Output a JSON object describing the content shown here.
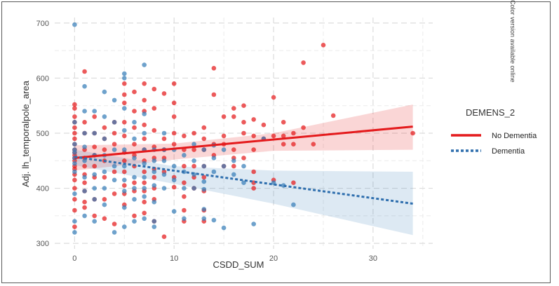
{
  "side_note": "Color version available online",
  "chart_data": {
    "type": "scatter",
    "xlabel": "CSDD_SUM",
    "ylabel": "Adj. lh_temporalpole_area",
    "xlim": [
      -2,
      36
    ],
    "ylim": [
      290,
      710
    ],
    "xticks": [
      0,
      10,
      20,
      30
    ],
    "yticks": [
      300,
      400,
      500,
      600,
      700
    ],
    "grid": true,
    "legend": {
      "title": "DEMENS_2",
      "placement": "right",
      "entries": [
        {
          "label": "No Dementia",
          "color": "#e41a1c",
          "line": "solid"
        },
        {
          "label": "Dementia",
          "color": "#377eb8",
          "line": "dashed"
        }
      ]
    },
    "series": [
      {
        "name": "No Dementia",
        "color": "#e41a1c",
        "fit": {
          "x": [
            0,
            34
          ],
          "y": [
            455,
            512
          ]
        },
        "band": {
          "x": [
            0,
            10,
            20,
            34
          ],
          "lower": [
            432,
            452,
            468,
            470
          ],
          "upper": [
            478,
            481,
            500,
            552
          ]
        },
        "points": [
          [
            0,
            330
          ],
          [
            0,
            360
          ],
          [
            0,
            380
          ],
          [
            0,
            400
          ],
          [
            0,
            415
          ],
          [
            0,
            425
          ],
          [
            0,
            435
          ],
          [
            0,
            440
          ],
          [
            0,
            450
          ],
          [
            0,
            455
          ],
          [
            0,
            460
          ],
          [
            0,
            465
          ],
          [
            0,
            470
          ],
          [
            0,
            480
          ],
          [
            0,
            490
          ],
          [
            0,
            500
          ],
          [
            0,
            510
          ],
          [
            0,
            520
          ],
          [
            0,
            530
          ],
          [
            0,
            545
          ],
          [
            0,
            552
          ],
          [
            1,
            612
          ],
          [
            1,
            470
          ],
          [
            1,
            455
          ],
          [
            1,
            440
          ],
          [
            1,
            425
          ],
          [
            1,
            410
          ],
          [
            1,
            395
          ],
          [
            1,
            375
          ],
          [
            1,
            365
          ],
          [
            1,
            500
          ],
          [
            1,
            520
          ],
          [
            2,
            350
          ],
          [
            2,
            380
          ],
          [
            2,
            420
          ],
          [
            2,
            440
          ],
          [
            2,
            460
          ],
          [
            2,
            475
          ],
          [
            2,
            500
          ],
          [
            2,
            530
          ],
          [
            3,
            345
          ],
          [
            3,
            380
          ],
          [
            3,
            420
          ],
          [
            3,
            450
          ],
          [
            3,
            470
          ],
          [
            3,
            490
          ],
          [
            3,
            510
          ],
          [
            4,
            335
          ],
          [
            4,
            390
          ],
          [
            4,
            430
          ],
          [
            4,
            480
          ],
          [
            4,
            500
          ],
          [
            4,
            520
          ],
          [
            5,
            590
          ],
          [
            5,
            570
          ],
          [
            5,
            555
          ],
          [
            5,
            520
          ],
          [
            5,
            495
          ],
          [
            5,
            465
          ],
          [
            5,
            450
          ],
          [
            5,
            430
          ],
          [
            5,
            405
          ],
          [
            5,
            390
          ],
          [
            5,
            370
          ],
          [
            6,
            575
          ],
          [
            6,
            540
          ],
          [
            6,
            510
          ],
          [
            6,
            480
          ],
          [
            6,
            460
          ],
          [
            6,
            440
          ],
          [
            6,
            410
          ],
          [
            6,
            395
          ],
          [
            6,
            350
          ],
          [
            7,
            590
          ],
          [
            7,
            560
          ],
          [
            7,
            540
          ],
          [
            7,
            515
          ],
          [
            7,
            490
          ],
          [
            7,
            470
          ],
          [
            7,
            450
          ],
          [
            7,
            430
          ],
          [
            7,
            410
          ],
          [
            7,
            395
          ],
          [
            7,
            375
          ],
          [
            7,
            355
          ],
          [
            8,
            580
          ],
          [
            8,
            545
          ],
          [
            8,
            505
          ],
          [
            8,
            475
          ],
          [
            8,
            455
          ],
          [
            8,
            435
          ],
          [
            8,
            420
          ],
          [
            8,
            400
          ],
          [
            8,
            380
          ],
          [
            8,
            340
          ],
          [
            9,
            572
          ],
          [
            9,
            490
          ],
          [
            9,
            470
          ],
          [
            9,
            455
          ],
          [
            9,
            430
          ],
          [
            9,
            312
          ],
          [
            10,
            590
          ],
          [
            10,
            555
          ],
          [
            10,
            530
          ],
          [
            10,
            500
          ],
          [
            10,
            480
          ],
          [
            10,
            420
          ],
          [
            10,
            402
          ],
          [
            11,
            495
          ],
          [
            11,
            470
          ],
          [
            11,
            440
          ],
          [
            11,
            410
          ],
          [
            11,
            385
          ],
          [
            11,
            360
          ],
          [
            11,
            340
          ],
          [
            12,
            500
          ],
          [
            12,
            470
          ],
          [
            12,
            440
          ],
          [
            12,
            420
          ],
          [
            12,
            400
          ],
          [
            13,
            510
          ],
          [
            13,
            490
          ],
          [
            13,
            470
          ],
          [
            13,
            440
          ],
          [
            13,
            420
          ],
          [
            13,
            395
          ],
          [
            13,
            360
          ],
          [
            13,
            340
          ],
          [
            14,
            570
          ],
          [
            14,
            618
          ],
          [
            14,
            480
          ],
          [
            14,
            460
          ],
          [
            15,
            530
          ],
          [
            15,
            495
          ],
          [
            15,
            480
          ],
          [
            15,
            440
          ],
          [
            16,
            545
          ],
          [
            16,
            530
          ],
          [
            16,
            470
          ],
          [
            16,
            455
          ],
          [
            16,
            440
          ],
          [
            17,
            550
          ],
          [
            17,
            520
          ],
          [
            17,
            500
          ],
          [
            17,
            455
          ],
          [
            18,
            525
          ],
          [
            18,
            495
          ],
          [
            18,
            470
          ],
          [
            18,
            430
          ],
          [
            18,
            410
          ],
          [
            18,
            400
          ],
          [
            19,
            515
          ],
          [
            19,
            490
          ],
          [
            20,
            565
          ],
          [
            20,
            495
          ],
          [
            20,
            415
          ],
          [
            21,
            520
          ],
          [
            21,
            495
          ],
          [
            21,
            480
          ],
          [
            22,
            500
          ],
          [
            22,
            480
          ],
          [
            22,
            410
          ],
          [
            23,
            628
          ],
          [
            23,
            510
          ],
          [
            24,
            480
          ],
          [
            25,
            660
          ],
          [
            26,
            532
          ],
          [
            34,
            500
          ]
        ]
      },
      {
        "name": "Dementia",
        "color": "#377eb8",
        "fit": {
          "x": [
            0,
            34
          ],
          "y": [
            457,
            372
          ]
        },
        "band": {
          "x": [
            0,
            10,
            20,
            34
          ],
          "lower": [
            442,
            408,
            372,
            315
          ],
          "upper": [
            470,
            440,
            432,
            430
          ]
        },
        "points": [
          [
            0,
            697
          ],
          [
            0,
            320
          ],
          [
            0,
            340
          ],
          [
            0,
            390
          ],
          [
            0,
            430
          ],
          [
            0,
            445
          ],
          [
            0,
            455
          ],
          [
            0,
            465
          ],
          [
            0,
            470
          ],
          [
            0,
            480
          ],
          [
            0,
            520
          ],
          [
            1,
            585
          ],
          [
            1,
            540
          ],
          [
            1,
            500
          ],
          [
            1,
            475
          ],
          [
            1,
            450
          ],
          [
            1,
            420
          ],
          [
            1,
            395
          ],
          [
            1,
            350
          ],
          [
            2,
            540
          ],
          [
            2,
            500
          ],
          [
            2,
            460
          ],
          [
            2,
            425
          ],
          [
            2,
            400
          ],
          [
            2,
            380
          ],
          [
            2,
            340
          ],
          [
            3,
            575
          ],
          [
            3,
            530
          ],
          [
            3,
            490
          ],
          [
            3,
            460
          ],
          [
            3,
            430
          ],
          [
            3,
            400
          ],
          [
            3,
            370
          ],
          [
            4,
            560
          ],
          [
            4,
            520
          ],
          [
            4,
            470
          ],
          [
            4,
            440
          ],
          [
            4,
            415
          ],
          [
            4,
            320
          ],
          [
            5,
            608
          ],
          [
            5,
            600
          ],
          [
            5,
            545
          ],
          [
            5,
            505
          ],
          [
            5,
            470
          ],
          [
            5,
            440
          ],
          [
            5,
            415
          ],
          [
            5,
            395
          ],
          [
            5,
            365
          ],
          [
            5,
            330
          ],
          [
            6,
            520
          ],
          [
            6,
            490
          ],
          [
            6,
            455
          ],
          [
            6,
            420
          ],
          [
            6,
            400
          ],
          [
            6,
            380
          ],
          [
            6,
            340
          ],
          [
            7,
            624
          ],
          [
            7,
            535
          ],
          [
            7,
            500
          ],
          [
            7,
            470
          ],
          [
            7,
            445
          ],
          [
            7,
            420
          ],
          [
            7,
            400
          ],
          [
            7,
            385
          ],
          [
            7,
            345
          ],
          [
            8,
            470
          ],
          [
            8,
            450
          ],
          [
            8,
            430
          ],
          [
            8,
            405
          ],
          [
            8,
            375
          ],
          [
            8,
            340
          ],
          [
            8,
            330
          ],
          [
            9,
            500
          ],
          [
            9,
            470
          ],
          [
            9,
            450
          ],
          [
            9,
            425
          ],
          [
            9,
            400
          ],
          [
            10,
            470
          ],
          [
            10,
            440
          ],
          [
            10,
            415
          ],
          [
            10,
            358
          ],
          [
            11,
            460
          ],
          [
            11,
            430
          ],
          [
            11,
            400
          ],
          [
            11,
            345
          ],
          [
            12,
            480
          ],
          [
            12,
            450
          ],
          [
            12,
            425
          ],
          [
            12,
            400
          ],
          [
            13,
            470
          ],
          [
            13,
            440
          ],
          [
            13,
            412
          ],
          [
            13,
            398
          ],
          [
            13,
            362
          ],
          [
            13,
            345
          ],
          [
            14,
            478
          ],
          [
            14,
            455
          ],
          [
            14,
            430
          ],
          [
            14,
            342
          ],
          [
            15,
            470
          ],
          [
            15,
            440
          ],
          [
            15,
            328
          ],
          [
            16,
            450
          ],
          [
            16,
            425
          ],
          [
            17,
            440
          ],
          [
            17,
            410
          ],
          [
            18,
            335
          ],
          [
            19,
            490
          ],
          [
            20,
            410
          ],
          [
            21,
            405
          ],
          [
            22,
            370
          ]
        ]
      }
    ]
  }
}
